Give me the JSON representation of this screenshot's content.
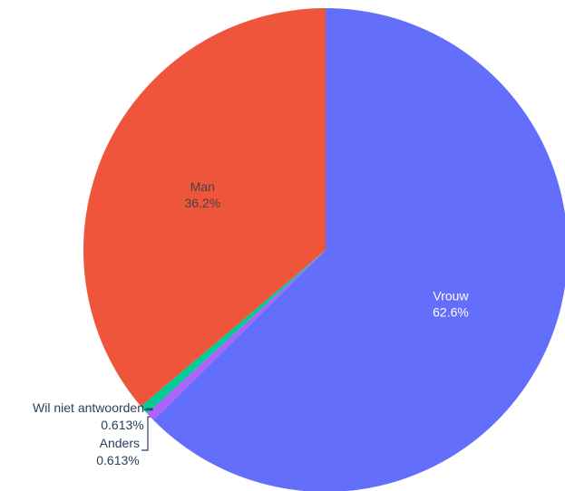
{
  "chart_data": {
    "type": "pie",
    "title": "",
    "direction": "clockwise",
    "start": "top",
    "slices": [
      {
        "label": "Vrouw",
        "value": 62.6,
        "percent_text": "62.6%",
        "color": "#636efa",
        "label_color": "#ffffff",
        "label_position": "inside"
      },
      {
        "label": "Anders",
        "value": 0.613,
        "percent_text": "0.613%",
        "color": "#ab63fa",
        "label_color": "#2a3f5f",
        "label_position": "outside"
      },
      {
        "label": "Wil niet antwoorden",
        "value": 0.613,
        "percent_text": "0.613%",
        "color": "#00cc96",
        "label_color": "#2a3f5f",
        "label_position": "outside"
      },
      {
        "label": "Man",
        "value": 36.2,
        "percent_text": "36.2%",
        "color": "#ef553b",
        "label_color": "#444444",
        "label_position": "inside"
      }
    ]
  }
}
